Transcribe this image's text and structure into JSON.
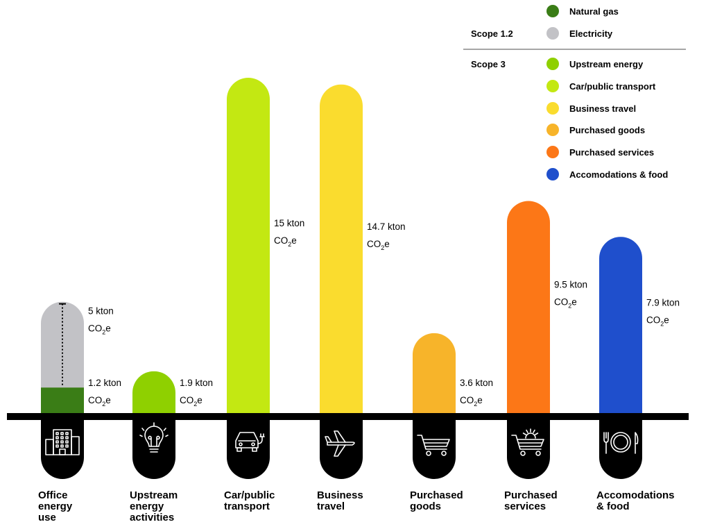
{
  "chart_data": {
    "type": "bar",
    "unit_line1_suffix": "kton",
    "unit_co2_main": "CO",
    "unit_co2_sub": "2",
    "unit_co2_tail": "e",
    "ylim": [
      0,
      16.5
    ],
    "categories": [
      {
        "label": "Office energy use",
        "label_lines": [
          "Office",
          "energy",
          "use"
        ],
        "icon": "office-building-icon",
        "segments": [
          {
            "series": "Natural gas",
            "value": 1.2,
            "color": "#3a7d16"
          },
          {
            "series": "Electricity",
            "value": 3.8,
            "color": "#c2c2c6"
          }
        ],
        "value_labels": [
          {
            "value": 5,
            "text": "5 kton",
            "anchor": "top"
          },
          {
            "value": 1.2,
            "text": "1.2 kton",
            "anchor": "bottom"
          }
        ]
      },
      {
        "label": "Upstream energy activities",
        "label_lines": [
          "Upstream",
          "energy",
          "activities"
        ],
        "icon": "lightbulb-icon",
        "segments": [
          {
            "series": "Upstream energy",
            "value": 1.9,
            "color": "#8fd000"
          }
        ],
        "value_labels": [
          {
            "value": 1.9,
            "text": "1.9 kton",
            "anchor": "bottom"
          }
        ]
      },
      {
        "label": "Car/public transport",
        "label_lines": [
          "Car/public",
          "transport"
        ],
        "icon": "electric-car-icon",
        "segments": [
          {
            "series": "Car/public transport",
            "value": 15,
            "color": "#c3e812"
          }
        ],
        "value_labels": [
          {
            "value": 15,
            "text": "15 kton",
            "anchor": "mid"
          }
        ]
      },
      {
        "label": "Business travel",
        "label_lines": [
          "Business",
          "travel"
        ],
        "icon": "airplane-icon",
        "segments": [
          {
            "series": "Business travel",
            "value": 14.7,
            "color": "#fadc2e"
          }
        ],
        "value_labels": [
          {
            "value": 14.7,
            "text": "14.7 kton",
            "anchor": "mid"
          }
        ]
      },
      {
        "label": "Purchased goods",
        "label_lines": [
          "Purchased",
          "goods"
        ],
        "icon": "shopping-cart-icon",
        "segments": [
          {
            "series": "Purchased goods",
            "value": 3.6,
            "color": "#f7b42a"
          }
        ],
        "value_labels": [
          {
            "value": 3.6,
            "text": "3.6 kton",
            "anchor": "bottom"
          }
        ]
      },
      {
        "label": "Purchased services",
        "label_lines": [
          "Purchased",
          "services"
        ],
        "icon": "cart-gear-icon",
        "segments": [
          {
            "series": "Purchased services",
            "value": 9.5,
            "color": "#fc7717"
          }
        ],
        "value_labels": [
          {
            "value": 9.5,
            "text": "9.5 kton",
            "anchor": "mid"
          }
        ]
      },
      {
        "label": "Accomodations & food",
        "label_lines": [
          "Accomodations",
          "& food"
        ],
        "icon": "plate-cutlery-icon",
        "segments": [
          {
            "series": "Accomodations & food",
            "value": 7.9,
            "color": "#1f4fcc"
          }
        ],
        "value_labels": [
          {
            "value": 7.9,
            "text": "7.9 kton",
            "anchor": "mid"
          }
        ]
      }
    ],
    "legend": {
      "placement": "top-right",
      "scope_groups": [
        {
          "label": "Scope 1.2",
          "items": [
            {
              "name": "Natural gas",
              "color": "#3a7d16"
            },
            {
              "name": "Electricity",
              "color": "#c2c2c6"
            }
          ]
        },
        {
          "label": "Scope 3",
          "items": [
            {
              "name": "Upstream energy",
              "color": "#8fd000"
            },
            {
              "name": "Car/public transport",
              "color": "#c3e812"
            },
            {
              "name": "Business travel",
              "color": "#fadc2e"
            },
            {
              "name": "Purchased goods",
              "color": "#f7b42a"
            },
            {
              "name": "Purchased services",
              "color": "#fc7717"
            },
            {
              "name": "Accomodations & food",
              "color": "#1f4fcc"
            }
          ]
        }
      ]
    }
  }
}
